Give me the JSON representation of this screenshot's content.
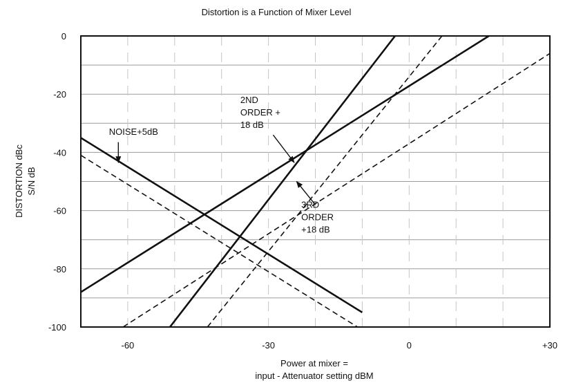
{
  "chart_data": {
    "type": "line",
    "title": "Distortion is a Function of Mixer Level",
    "ylabel_lines": [
      "DISTORTION dBc",
      "S/N dB"
    ],
    "xlabel_lines": [
      "Power at mixer =",
      "input - Attenuator setting dBM"
    ],
    "xlim": [
      -70,
      30
    ],
    "ylim": [
      -100,
      0
    ],
    "xticks": [
      {
        "value": -60,
        "label": "-60"
      },
      {
        "value": -30,
        "label": "-30"
      },
      {
        "value": 0,
        "label": "0"
      },
      {
        "value": 30,
        "label": "+30"
      }
    ],
    "yticks": [
      {
        "value": 0,
        "label": "0"
      },
      {
        "value": -20,
        "label": "-20"
      },
      {
        "value": -40,
        "label": "-40"
      },
      {
        "value": -60,
        "label": "-60"
      },
      {
        "value": -80,
        "label": "-80"
      },
      {
        "value": -100,
        "label": "-100"
      }
    ],
    "grid": true,
    "series": [
      {
        "id": "noise-solid",
        "style": "solid",
        "points": [
          [
            -70,
            -35
          ],
          [
            -10,
            -95
          ]
        ]
      },
      {
        "id": "noise-dashed",
        "style": "dashed",
        "points": [
          [
            -70,
            -41
          ],
          [
            -11,
            -100
          ]
        ]
      },
      {
        "id": "second-order-solid",
        "style": "solid",
        "points": [
          [
            -70,
            -88
          ],
          [
            17,
            0
          ]
        ]
      },
      {
        "id": "second-order-dashed",
        "style": "dashed",
        "points": [
          [
            -61,
            -100
          ],
          [
            30,
            -6
          ]
        ]
      },
      {
        "id": "third-order-solid",
        "style": "solid",
        "points": [
          [
            -51,
            -100
          ],
          [
            -3,
            0
          ]
        ]
      },
      {
        "id": "third-order-dashed",
        "style": "dashed",
        "points": [
          [
            -43,
            -100
          ],
          [
            7,
            0
          ]
        ]
      }
    ],
    "annotations": [
      {
        "id": "noise",
        "lines": [
          "NOISE+5dB"
        ],
        "text_at": [
          -64,
          -34
        ],
        "arrow_from": [
          -62,
          -36.5
        ],
        "arrow_to": [
          -62,
          -43.5
        ]
      },
      {
        "id": "second-order",
        "lines": [
          "2ND",
          "ORDER +",
          "18 dB"
        ],
        "text_at": [
          -36,
          -23
        ],
        "arrow_from": [
          -29,
          -34
        ],
        "arrow_to": [
          -24.5,
          -43.5
        ]
      },
      {
        "id": "third-order",
        "lines": [
          "3RD",
          "ORDER",
          "+18 dB"
        ],
        "text_at": [
          -23,
          -59
        ],
        "arrow_from": [
          -20,
          -58
        ],
        "arrow_to": [
          -24,
          -50
        ]
      }
    ]
  }
}
